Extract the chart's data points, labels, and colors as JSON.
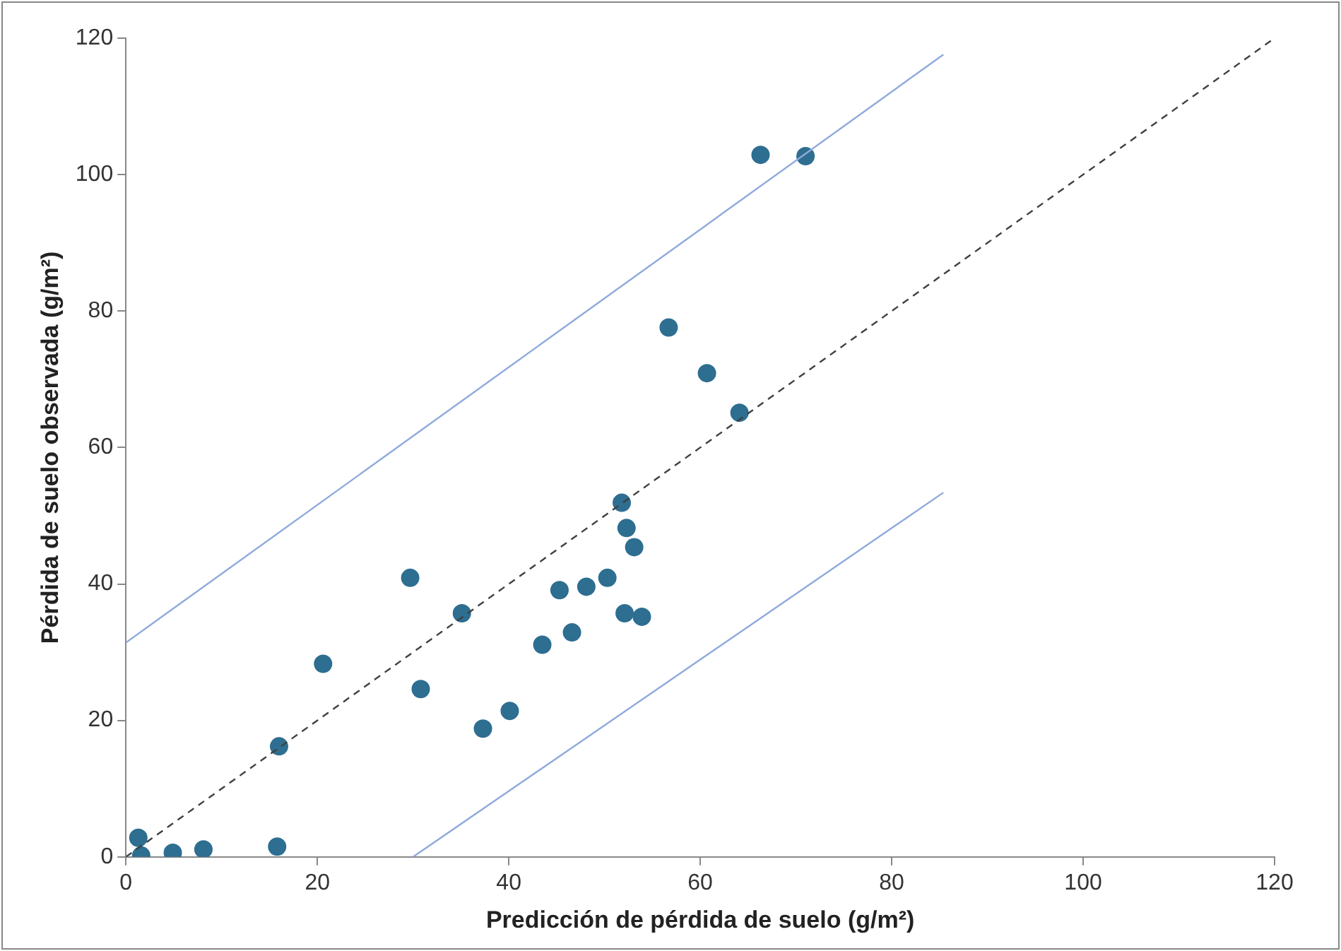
{
  "chart_data": {
    "type": "scatter",
    "xlabel": "Predicción de pérdida de suelo (g/m²)",
    "ylabel": "Pérdida de suelo observada (g/m²)",
    "xlim": [
      0,
      120
    ],
    "xticks": [
      0,
      20,
      40,
      60,
      80,
      100,
      120
    ],
    "ylim": [
      0,
      120
    ],
    "yticks": [
      0,
      20,
      40,
      60,
      80,
      100,
      120
    ],
    "grid": false,
    "legend": false,
    "marker": "circle",
    "series": [
      {
        "color": "#2e6e91",
        "x": [
          1.3,
          1.6,
          4.9,
          8.1,
          15.8,
          16.0,
          20.6,
          29.7,
          30.8,
          35.1,
          37.3,
          40.1,
          43.5,
          45.3,
          46.6,
          48.1,
          50.3,
          51.8,
          52.3,
          53.1,
          52.1,
          53.9,
          56.7,
          60.7,
          64.1,
          66.3,
          71.0
        ],
        "values": [
          2.8,
          0.2,
          0.6,
          1.1,
          1.5,
          16.2,
          28.3,
          40.9,
          24.6,
          35.7,
          18.8,
          21.4,
          31.1,
          39.1,
          32.9,
          39.6,
          40.9,
          51.9,
          48.2,
          45.4,
          35.7,
          35.2,
          77.6,
          70.9,
          65.1,
          102.9,
          102.7
        ]
      },
      {
        "type": "line",
        "color": "#404040",
        "line_style": "dashed",
        "marker": "none",
        "x": [
          0,
          120
        ],
        "values": [
          0,
          120
        ]
      },
      {
        "type": "line",
        "color": "#8faadc",
        "line_style": "solid",
        "marker": "none",
        "x": [
          0,
          85.4
        ],
        "values": [
          31.4,
          117.6
        ]
      },
      {
        "type": "line",
        "color": "#8faadc",
        "line_style": "solid",
        "marker": "none",
        "x": [
          30,
          85.4
        ],
        "values": [
          0,
          53.4
        ]
      }
    ]
  }
}
